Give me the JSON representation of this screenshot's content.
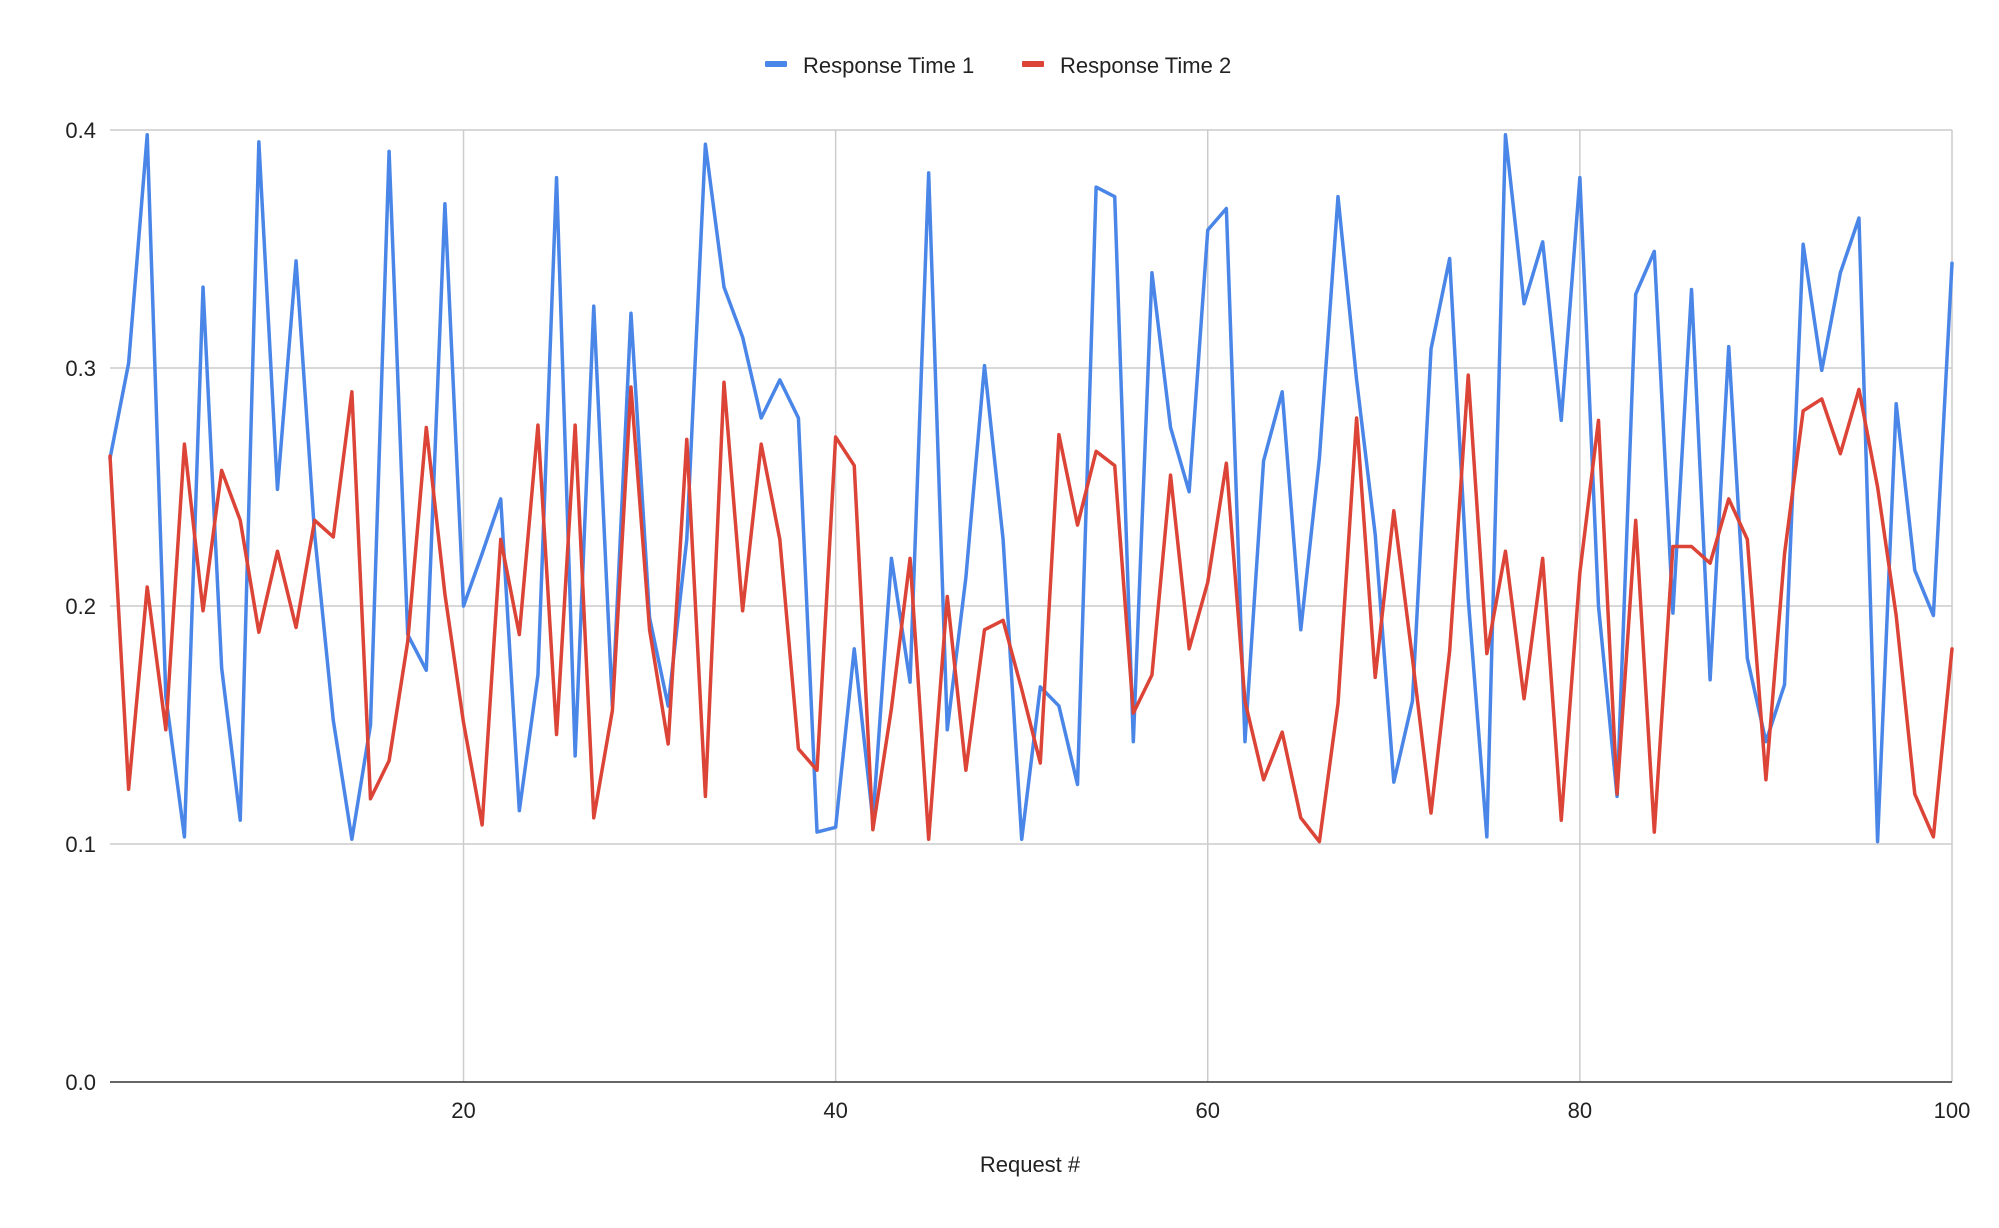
{
  "chart_data": {
    "type": "line",
    "title": "",
    "xlabel": "Request #",
    "ylabel": "",
    "xlim": [
      1,
      100
    ],
    "ylim": [
      0.0,
      0.4
    ],
    "x_ticks": [
      20,
      40,
      60,
      80,
      100
    ],
    "y_ticks": [
      0.0,
      0.1,
      0.2,
      0.3,
      0.4
    ],
    "y_tick_labels": [
      "0.0",
      "0.1",
      "0.2",
      "0.3",
      "0.4"
    ],
    "grid": true,
    "legend_position": "top-center",
    "x": [
      1,
      2,
      3,
      4,
      5,
      6,
      7,
      8,
      9,
      10,
      11,
      12,
      13,
      14,
      15,
      16,
      17,
      18,
      19,
      20,
      21,
      22,
      23,
      24,
      25,
      26,
      27,
      28,
      29,
      30,
      31,
      32,
      33,
      34,
      35,
      36,
      37,
      38,
      39,
      40,
      41,
      42,
      43,
      44,
      45,
      46,
      47,
      48,
      49,
      50,
      51,
      52,
      53,
      54,
      55,
      56,
      57,
      58,
      59,
      60,
      61,
      62,
      63,
      64,
      65,
      66,
      67,
      68,
      69,
      70,
      71,
      72,
      73,
      74,
      75,
      76,
      77,
      78,
      79,
      80,
      81,
      82,
      83,
      84,
      85,
      86,
      87,
      88,
      89,
      90,
      91,
      92,
      93,
      94,
      95,
      96,
      97,
      98,
      99,
      100
    ],
    "series": [
      {
        "name": "Response Time 1",
        "color": "#4a86e8",
        "values": [
          0.262,
          0.302,
          0.398,
          0.162,
          0.103,
          0.334,
          0.174,
          0.11,
          0.395,
          0.249,
          0.345,
          0.23,
          0.152,
          0.102,
          0.15,
          0.391,
          0.188,
          0.173,
          0.369,
          0.2,
          0.222,
          0.245,
          0.114,
          0.171,
          0.38,
          0.137,
          0.326,
          0.158,
          0.323,
          0.195,
          0.158,
          0.228,
          0.394,
          0.334,
          0.313,
          0.279,
          0.295,
          0.279,
          0.105,
          0.107,
          0.182,
          0.11,
          0.22,
          0.168,
          0.382,
          0.148,
          0.212,
          0.301,
          0.228,
          0.102,
          0.166,
          0.158,
          0.125,
          0.376,
          0.372,
          0.143,
          0.34,
          0.275,
          0.248,
          0.358,
          0.367,
          0.143,
          0.261,
          0.29,
          0.19,
          0.262,
          0.372,
          0.295,
          0.23,
          0.126,
          0.16,
          0.308,
          0.346,
          0.203,
          0.103,
          0.398,
          0.327,
          0.353,
          0.278,
          0.38,
          0.2,
          0.12,
          0.331,
          0.349,
          0.197,
          0.333,
          0.169,
          0.309,
          0.178,
          0.143,
          0.167,
          0.352,
          0.299,
          0.34,
          0.363,
          0.101,
          0.285,
          0.215,
          0.196,
          0.344
        ]
      },
      {
        "name": "Response Time 2",
        "color": "#db4437",
        "values": [
          0.263,
          0.123,
          0.208,
          0.148,
          0.268,
          0.198,
          0.257,
          0.236,
          0.189,
          0.223,
          0.191,
          0.236,
          0.229,
          0.29,
          0.119,
          0.135,
          0.185,
          0.275,
          0.205,
          0.151,
          0.108,
          0.228,
          0.188,
          0.276,
          0.146,
          0.276,
          0.111,
          0.156,
          0.292,
          0.19,
          0.142,
          0.27,
          0.12,
          0.294,
          0.198,
          0.268,
          0.228,
          0.14,
          0.131,
          0.271,
          0.259,
          0.106,
          0.157,
          0.22,
          0.102,
          0.204,
          0.131,
          0.19,
          0.194,
          0.165,
          0.134,
          0.272,
          0.234,
          0.265,
          0.259,
          0.155,
          0.171,
          0.255,
          0.182,
          0.21,
          0.26,
          0.16,
          0.127,
          0.147,
          0.111,
          0.101,
          0.159,
          0.279,
          0.17,
          0.24,
          0.178,
          0.113,
          0.181,
          0.297,
          0.18,
          0.223,
          0.161,
          0.22,
          0.11,
          0.214,
          0.278,
          0.121,
          0.236,
          0.105,
          0.225,
          0.225,
          0.218,
          0.245,
          0.228,
          0.127,
          0.222,
          0.282,
          0.287,
          0.264,
          0.291,
          0.25,
          0.196,
          0.121,
          0.103,
          0.182
        ]
      }
    ]
  }
}
